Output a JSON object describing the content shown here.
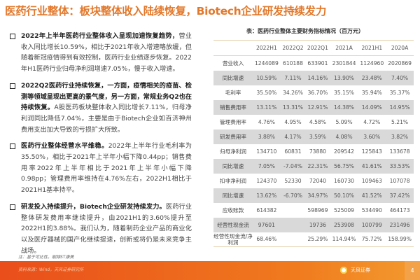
{
  "title": "医药行业整体：板块整体收入陆续恢复，Biotech企业研发持续发力",
  "bullets": [
    {
      "bold": "2022年上半年医药行业整体收入呈现加速恢复趋势，",
      "text": "营业收入同比增长10.59%，相比于2021年收入增速略放缓，但随着新冠疫情得到有效控制，医药行业业绩逐步恢复。2022年H1医药行业归母净利润增速7.05%，慢于收入增速。"
    },
    {
      "bold": "2022Q2医药行业持续恢复，一方面，疫情相关的疫苗、检测等领域呈现出更高的景气度，另一方面，常规业务Q2也在持续恢复。",
      "text": "A股医药板块整体收入同比增长7.11%，归母净利润同比降低7.04%，主要是由于Biotech企业如百济神州费用支出加大导致的亏损扩大所致。"
    },
    {
      "bold": "医药行业整体经营水平维稳。",
      "text": "2022年上半年行业毛利率为35.50%，相比于2021年上半年小幅下降0.44pp；销售费用率2022年上半年相比于2021年上半年小幅下降0.98pp；管理费用率维持在4.76%左右，2022H1相比于2021H1基本持平。"
    },
    {
      "bold": "研发投入持续提升，Biotech企业研发持续发力。",
      "text": "医药行业整体研发费用率继续提升，由2021H1的3.60%提升至2022H1的3.88%。我们认为，随着制药企业产品的商业化以及医疗器械的国产化继续提速，创新或将仍是未来竞争主战场。"
    }
  ],
  "table": {
    "caption": "表：医药行业整体主要财务指标情况（百万元）",
    "headers": [
      "",
      "2022H1",
      "2022Q2",
      "2022Q1",
      "2021A",
      "2021H1",
      "2020A"
    ],
    "rows": [
      {
        "label": "营业收入",
        "values": [
          "1244089",
          "610188",
          "633901",
          "2301844",
          "1124960",
          "2020869"
        ],
        "shaded": false
      },
      {
        "label": "同比增速",
        "values": [
          "10.59%",
          "7.11%",
          "14.16%",
          "13.90%",
          "23.48%",
          "7.40%"
        ],
        "shaded": true
      },
      {
        "label": "毛利率",
        "values": [
          "35.50%",
          "34.26%",
          "36.70%",
          "35.15%",
          "35.94%",
          "35.37%"
        ],
        "shaded": false
      },
      {
        "label": "销售费用率",
        "values": [
          "13.11%",
          "13.31%",
          "12.91%",
          "14.38%",
          "14.09%",
          "14.95%"
        ],
        "shaded": true
      },
      {
        "label": "管理费用率",
        "values": [
          "4.76%",
          "4.95%",
          "4.58%",
          "5.09%",
          "4.72%",
          "5.21%"
        ],
        "shaded": false
      },
      {
        "label": "研发费用率",
        "values": [
          "3.88%",
          "4.17%",
          "3.59%",
          "4.08%",
          "3.60%",
          "3.82%"
        ],
        "shaded": true
      },
      {
        "label": "归母净利润",
        "values": [
          "134710",
          "60831",
          "73880",
          "209542",
          "125843",
          "133678"
        ],
        "shaded": false
      },
      {
        "label": "同比增速",
        "values": [
          "7.05%",
          "-7.04%",
          "22.31%",
          "56.75%",
          "41.61%",
          "33.53%"
        ],
        "shaded": true
      },
      {
        "label": "扣非净利润",
        "values": [
          "124370",
          "52330",
          "72040",
          "160730",
          "109463",
          "107078"
        ],
        "shaded": false
      },
      {
        "label": "同比增速",
        "values": [
          "13.62%",
          "-6.70%",
          "34.97%",
          "50.10%",
          "41.52%",
          "37.42%"
        ],
        "shaded": true
      },
      {
        "label": "应收账款",
        "values": [
          "614382",
          "",
          "598969",
          "525009",
          "534490",
          "464173"
        ],
        "shaded": false
      },
      {
        "label": "经营性现金流",
        "values": [
          "97601",
          "",
          "19736",
          "253908",
          "100799",
          "231496"
        ],
        "shaded": true
      },
      {
        "label": "经营性现金流/净利润",
        "values": [
          "68.46%",
          "",
          "25.29%",
          "114.94%",
          "75.72%",
          "158.99%"
        ],
        "shaded": false
      }
    ]
  },
  "note": "注：基于可比性，剔除ST康美",
  "source": "资料来源：Wind，天风证券研究所",
  "logo": "天风证券",
  "page_number": "4",
  "colors": {
    "title": "#e2782b",
    "band": "#f07a1e",
    "shade": "#d9d9d9"
  }
}
